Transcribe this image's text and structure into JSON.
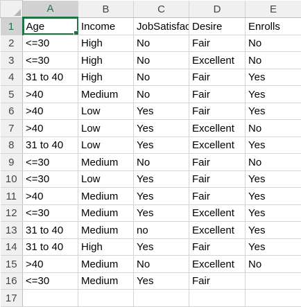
{
  "columns": [
    "A",
    "B",
    "C",
    "D",
    "E"
  ],
  "rows": [
    {
      "num": "1",
      "cells": [
        "Age",
        "Income",
        "JobSatisfaction",
        "Desire",
        "Enrolls"
      ]
    },
    {
      "num": "2",
      "cells": [
        "<=30",
        "High",
        "No",
        "Fair",
        "No"
      ]
    },
    {
      "num": "3",
      "cells": [
        "<=30",
        "High",
        "No",
        "Excellent",
        "No"
      ]
    },
    {
      "num": "4",
      "cells": [
        "31 to 40",
        "High",
        "No",
        "Fair",
        "Yes"
      ]
    },
    {
      "num": "5",
      "cells": [
        ">40",
        "Medium",
        "No",
        "Fair",
        "Yes"
      ]
    },
    {
      "num": "6",
      "cells": [
        ">40",
        "Low",
        "Yes",
        "Fair",
        "Yes"
      ]
    },
    {
      "num": "7",
      "cells": [
        ">40",
        "Low",
        "Yes",
        "Excellent",
        "No"
      ]
    },
    {
      "num": "8",
      "cells": [
        "31 to 40",
        "Low",
        "Yes",
        "Excellent",
        "Yes"
      ]
    },
    {
      "num": "9",
      "cells": [
        "<=30",
        "Medium",
        "No",
        "Fair",
        "No"
      ]
    },
    {
      "num": "10",
      "cells": [
        "<=30",
        "Low",
        "Yes",
        "Fair",
        "Yes"
      ]
    },
    {
      "num": "11",
      "cells": [
        ">40",
        "Medium",
        "Yes",
        "Fair",
        "Yes"
      ]
    },
    {
      "num": "12",
      "cells": [
        "<=30",
        "Medium",
        "Yes",
        "Excellent",
        "Yes"
      ]
    },
    {
      "num": "13",
      "cells": [
        "31 to 40",
        "Medium",
        "no",
        "Excellent",
        "Yes"
      ]
    },
    {
      "num": "14",
      "cells": [
        "31 to 40",
        "High",
        "Yes",
        "Fair",
        "Yes"
      ]
    },
    {
      "num": "15",
      "cells": [
        ">40",
        "Medium",
        "No",
        "Excellent",
        "No"
      ]
    },
    {
      "num": "16",
      "cells": [
        "<=30",
        "Medium",
        "Yes",
        "Fair",
        ""
      ]
    },
    {
      "num": "17",
      "cells": [
        "",
        "",
        "",
        "",
        ""
      ]
    }
  ],
  "active_cell": "A1",
  "colors": {
    "accent": "#217346",
    "header_bg": "#f0f0f0",
    "header_selected_bg": "#d2d2d2",
    "gridline": "#d4d4d4"
  }
}
